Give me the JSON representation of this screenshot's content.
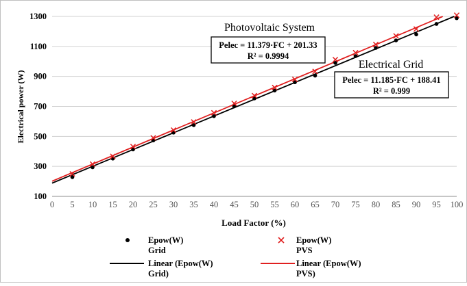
{
  "chart_data": {
    "type": "scatter",
    "xlabel": "Load Factor  (%)",
    "ylabel": "Electrical power (W)",
    "xlim": [
      0,
      100
    ],
    "ylim": [
      100,
      1300
    ],
    "x_ticks": [
      "0",
      "5",
      "10",
      "15",
      "20",
      "25",
      "30",
      "35",
      "40",
      "45",
      "50",
      "55",
      "60",
      "65",
      "70",
      "75",
      "80",
      "85",
      "90",
      "95",
      "100"
    ],
    "y_ticks": [
      "100",
      "300",
      "500",
      "700",
      "900",
      "1100",
      "1300"
    ],
    "grid": true,
    "legend_placement": "bottom",
    "series": [
      {
        "key": "grid_points",
        "marker": "dot",
        "color": "#000000",
        "x": [
          5,
          10,
          15,
          20,
          25,
          30,
          35,
          40,
          45,
          50,
          55,
          60,
          65,
          70,
          75,
          80,
          85,
          90,
          95,
          100
        ],
        "y": [
          228,
          294,
          352,
          413,
          473,
          525,
          575,
          635,
          700,
          753,
          806,
          861,
          905,
          990,
          1035,
          1090,
          1140,
          1180,
          1250,
          1288
        ]
      },
      {
        "key": "pvs_points",
        "marker": "x",
        "color": "#e02020",
        "x": [
          5,
          10,
          15,
          20,
          25,
          30,
          35,
          40,
          45,
          50,
          55,
          60,
          65,
          70,
          75,
          80,
          85,
          90,
          95,
          100
        ],
        "y": [
          250,
          315,
          367,
          432,
          490,
          542,
          596,
          657,
          720,
          772,
          826,
          880,
          933,
          1012,
          1058,
          1113,
          1170,
          1216,
          1295,
          1308
        ]
      },
      {
        "key": "grid_trend",
        "type": "line",
        "color": "#000000",
        "slope": 11.185,
        "intercept": 188.41
      },
      {
        "key": "pvs_trend",
        "type": "line",
        "color": "#e02020",
        "slope": 11.379,
        "intercept": 201.33
      }
    ],
    "annotations": {
      "pv_title": "Photovoltaic  System",
      "pv_eq": "Pelec = 11.379·FC + 201.33",
      "pv_r2": "R² = 0.9994",
      "grid_title": "Electrical Grid",
      "grid_eq": "Pelec = 11.185·FC + 188.41",
      "grid_r2": "R² = 0.999"
    },
    "legend": [
      {
        "series": "grid_points",
        "line1": "Epow(W)",
        "line2": "Grid"
      },
      {
        "series": "pvs_points",
        "line1": "Epow(W)",
        "line2": "PVS"
      },
      {
        "series": "grid_trend",
        "line1": "Linear (Epow(W)",
        "line2": "Grid)"
      },
      {
        "series": "pvs_trend",
        "line1": "Linear (Epow(W)",
        "line2": "PVS)"
      }
    ]
  }
}
